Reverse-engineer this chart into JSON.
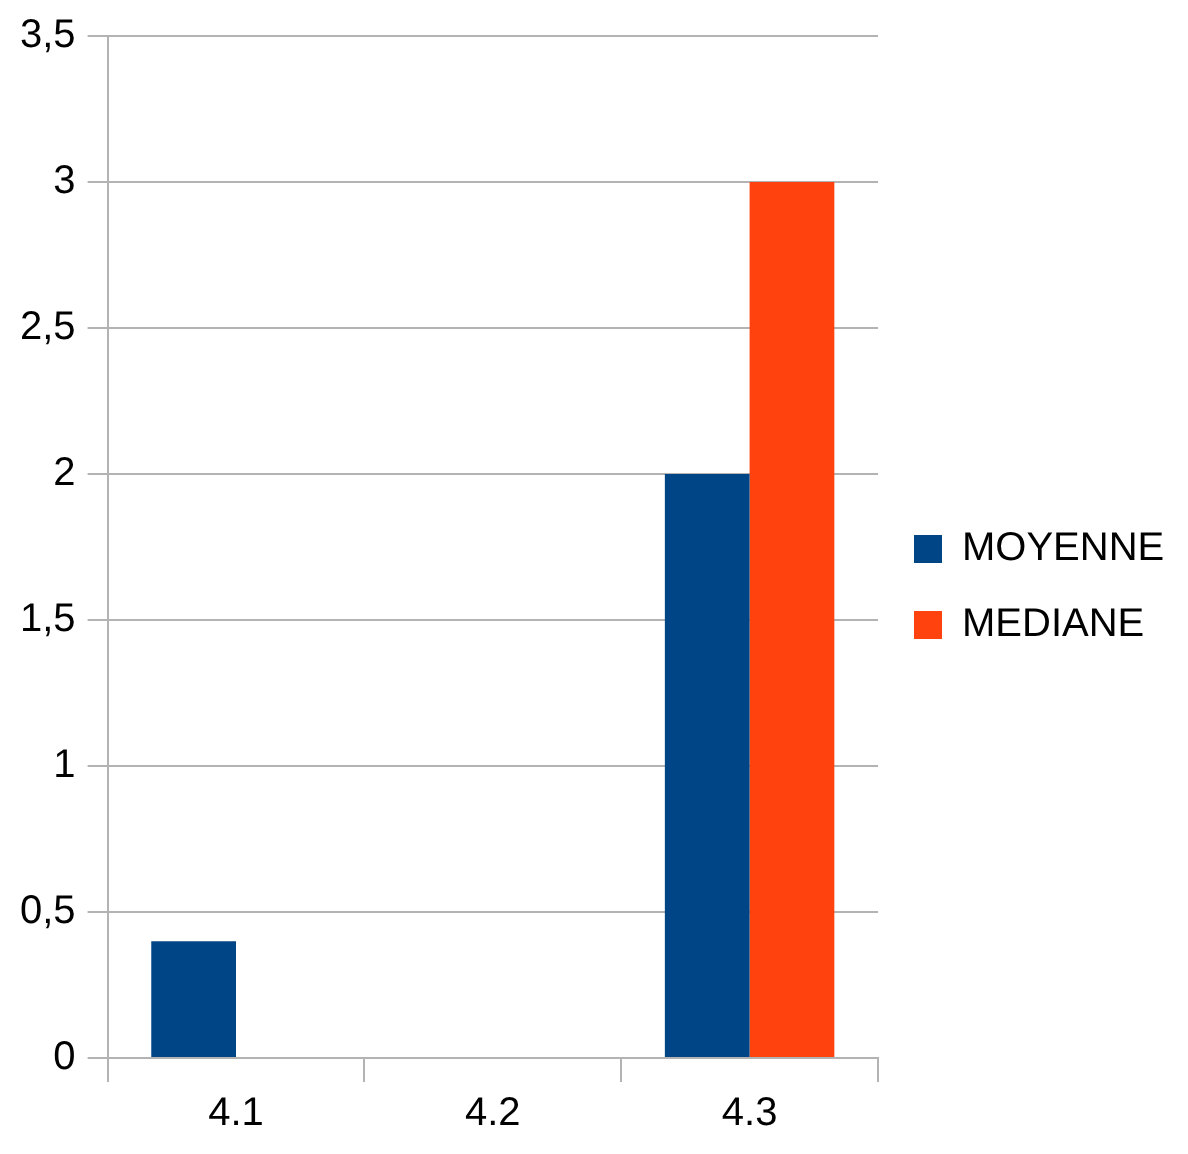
{
  "chart_data": {
    "type": "bar",
    "categories": [
      "4.1",
      "4.2",
      "4.3"
    ],
    "series": [
      {
        "name": "MOYENNE",
        "color": "#004586",
        "values": [
          0.4,
          0,
          2
        ]
      },
      {
        "name": "MEDIANE",
        "color": "#ff420e",
        "values": [
          0,
          0,
          3
        ]
      }
    ],
    "ylim": [
      0,
      3.5
    ],
    "yticks": [
      {
        "value": 0,
        "label": "0"
      },
      {
        "value": 0.5,
        "label": "0,5"
      },
      {
        "value": 1,
        "label": "1"
      },
      {
        "value": 1.5,
        "label": "1,5"
      },
      {
        "value": 2,
        "label": "2"
      },
      {
        "value": 2.5,
        "label": "2,5"
      },
      {
        "value": 3,
        "label": "3"
      },
      {
        "value": 3.5,
        "label": "3,5"
      }
    ],
    "grid": "y",
    "legend": "right"
  }
}
